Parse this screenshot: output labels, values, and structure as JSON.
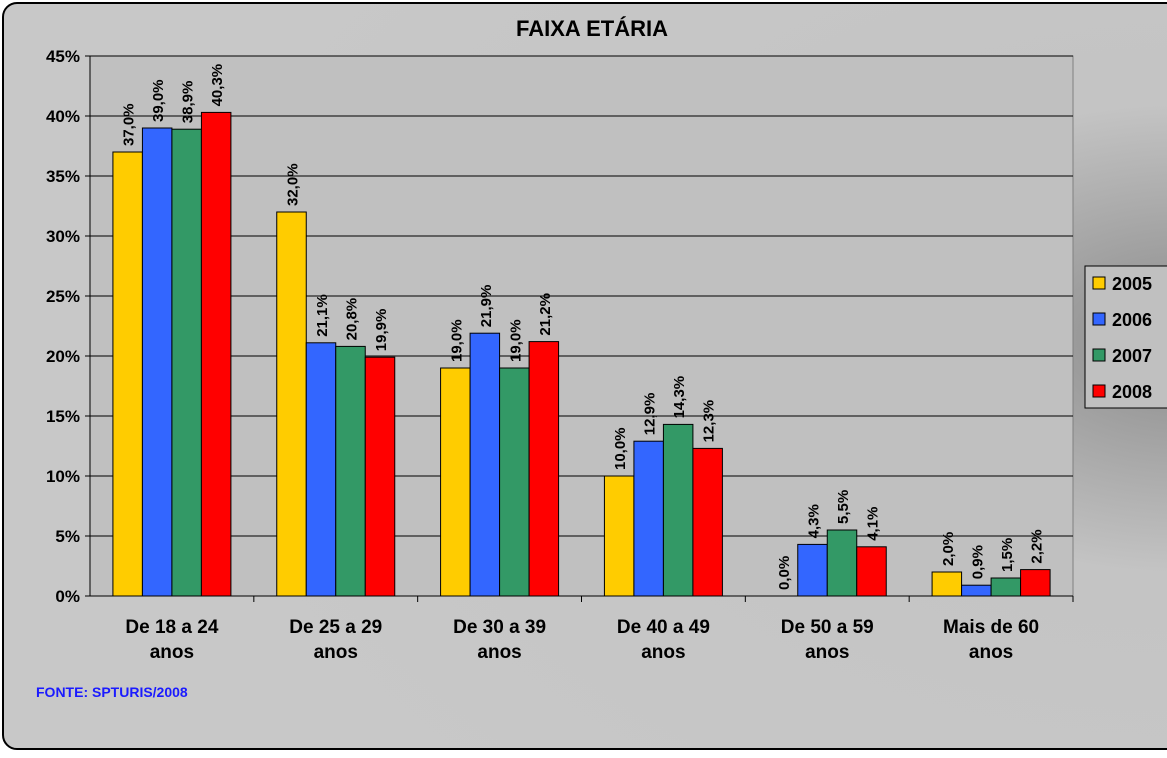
{
  "chart_data": {
    "type": "bar",
    "title": "FAIXA ETÁRIA",
    "categories": [
      "De 18 a 24 anos",
      "De 25 a 29 anos",
      "De 30 a 39 anos",
      "De 40 a 49 anos",
      "De 50 a 59 anos",
      "Mais de 60 anos"
    ],
    "series": [
      {
        "name": "2005",
        "color": "#ffcc00",
        "values": [
          37.0,
          32.0,
          19.0,
          10.0,
          0.0,
          2.0
        ],
        "value_labels": [
          "37,0%",
          "32,0%",
          "19,0%",
          "10,0%",
          "0,0%",
          "2,0%"
        ]
      },
      {
        "name": "2006",
        "color": "#3366ff",
        "values": [
          39.0,
          21.1,
          21.9,
          12.9,
          4.3,
          0.9
        ],
        "value_labels": [
          "39,0%",
          "21,1%",
          "21,9%",
          "12,9%",
          "4,3%",
          "0,9%"
        ]
      },
      {
        "name": "2007",
        "color": "#339966",
        "values": [
          38.9,
          20.8,
          19.0,
          14.3,
          5.5,
          1.5
        ],
        "value_labels": [
          "38,9%",
          "20,8%",
          "19,0%",
          "14,3%",
          "5,5%",
          "1,5%"
        ]
      },
      {
        "name": "2008",
        "color": "#ff0000",
        "values": [
          40.3,
          19.9,
          21.2,
          12.3,
          4.1,
          2.2
        ],
        "value_labels": [
          "40,3%",
          "19,9%",
          "21,2%",
          "12,3%",
          "4,1%",
          "2,2%"
        ]
      }
    ],
    "ylim": [
      0,
      45
    ],
    "yticks": [
      {
        "value": 0,
        "label": "0%"
      },
      {
        "value": 5,
        "label": "5%"
      },
      {
        "value": 10,
        "label": "10%"
      },
      {
        "value": 15,
        "label": "15%"
      },
      {
        "value": 20,
        "label": "20%"
      },
      {
        "value": 25,
        "label": "25%"
      },
      {
        "value": 30,
        "label": "30%"
      },
      {
        "value": 35,
        "label": "35%"
      },
      {
        "value": 40,
        "label": "40%"
      },
      {
        "value": 45,
        "label": "45%"
      }
    ],
    "grid": true,
    "legend": "right",
    "source": "FONTE: SPTURIS/2008"
  }
}
